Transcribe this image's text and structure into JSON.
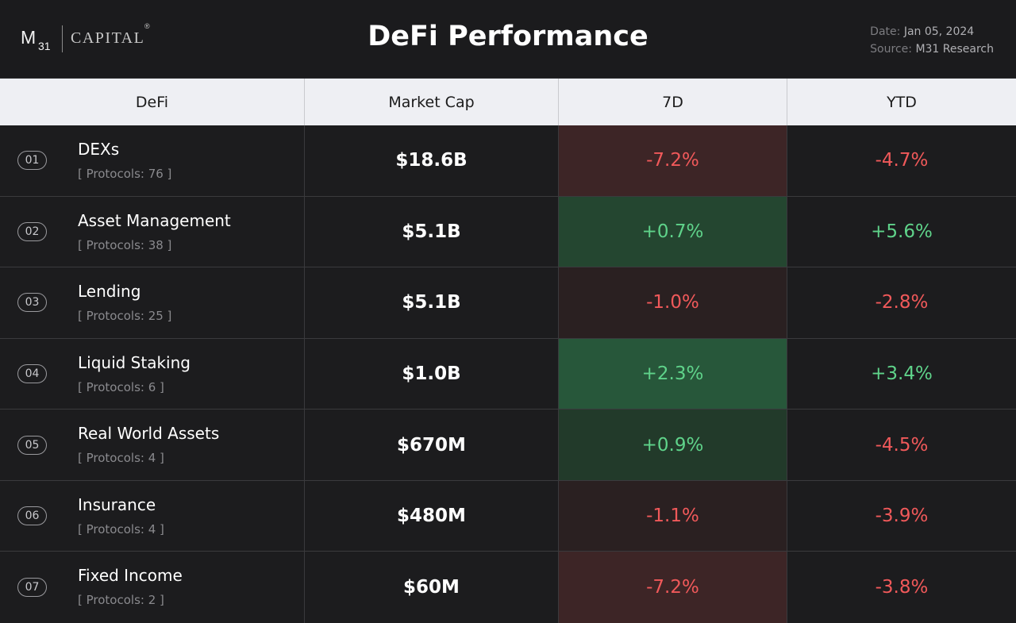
{
  "header": {
    "logo": {
      "m": "M",
      "sub": "31",
      "capital": "CAPITAL",
      "reg": "®"
    },
    "title": "DeFi Performance",
    "date_label": "Date:",
    "date_value": "Jan 05, 2024",
    "source_label": "Source:",
    "source_value": "M31 Research"
  },
  "colors": {
    "positive": "#5fd38a",
    "negative": "#f0595a",
    "pos_bg_strong": "#27573a",
    "pos_bg_mid": "#244630",
    "pos_bg_light": "#223a2a",
    "neg_bg_strong": "#3d2526",
    "neg_bg_light": "#2a2021"
  },
  "chart_data": {
    "type": "table",
    "title": "DeFi Performance",
    "columns": [
      "DeFi",
      "Market Cap",
      "7D",
      "YTD"
    ],
    "rows": [
      {
        "num": "01",
        "name": "DEXs",
        "protocols": "[ Protocols: 76 ]",
        "market_cap": "$18.6B",
        "d7": "-7.2%",
        "ytd": "-4.7%",
        "d7_value": -7.2,
        "ytd_value": -4.7
      },
      {
        "num": "02",
        "name": "Asset Management",
        "protocols": "[ Protocols: 38 ]",
        "market_cap": "$5.1B",
        "d7": "+0.7%",
        "ytd": "+5.6%",
        "d7_value": 0.7,
        "ytd_value": 5.6
      },
      {
        "num": "03",
        "name": "Lending",
        "protocols": "[ Protocols: 25 ]",
        "market_cap": "$5.1B",
        "d7": "-1.0%",
        "ytd": "-2.8%",
        "d7_value": -1.0,
        "ytd_value": -2.8
      },
      {
        "num": "04",
        "name": "Liquid Staking",
        "protocols": "[ Protocols: 6 ]",
        "market_cap": "$1.0B",
        "d7": "+2.3%",
        "ytd": "+3.4%",
        "d7_value": 2.3,
        "ytd_value": 3.4
      },
      {
        "num": "05",
        "name": "Real World Assets",
        "protocols": "[ Protocols: 4 ]",
        "market_cap": "$670M",
        "d7": "+0.9%",
        "ytd": "-4.5%",
        "d7_value": 0.9,
        "ytd_value": -4.5
      },
      {
        "num": "06",
        "name": "Insurance",
        "protocols": "[ Protocols: 4 ]",
        "market_cap": "$480M",
        "d7": "-1.1%",
        "ytd": "-3.9%",
        "d7_value": -1.1,
        "ytd_value": -3.9
      },
      {
        "num": "07",
        "name": "Fixed Income",
        "protocols": "[ Protocols: 2 ]",
        "market_cap": "$60M",
        "d7": "-7.2%",
        "ytd": "-3.8%",
        "d7_value": -7.2,
        "ytd_value": -3.8
      }
    ]
  }
}
